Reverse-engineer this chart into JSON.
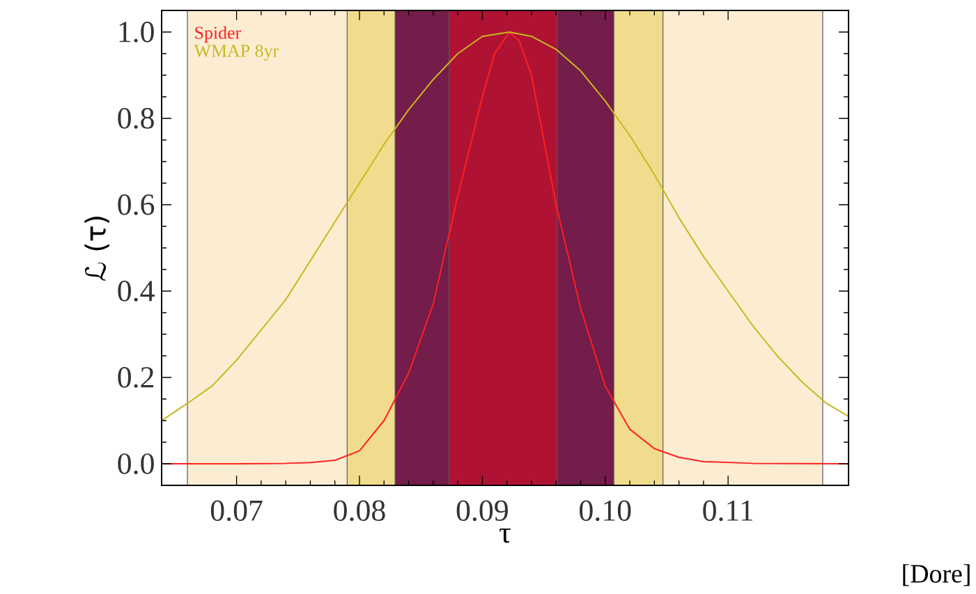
{
  "chart_data": {
    "type": "line",
    "xlabel": "τ",
    "ylabel": "ℒ (τ)",
    "xlim": [
      0.0639,
      0.1198
    ],
    "ylim": [
      -0.05,
      1.05
    ],
    "xticks": [
      0.07,
      0.08,
      0.09,
      {
        "value": 0.1,
        "label": "0.10"
      },
      0.11
    ],
    "yticks": [
      {
        "value": 0,
        "label": "0.0"
      },
      {
        "value": 0.2,
        "label": "0.2"
      },
      {
        "value": 0.4,
        "label": "0.4"
      },
      {
        "value": 0.6,
        "label": "0.6"
      },
      {
        "value": 0.8,
        "label": "0.8"
      },
      {
        "value": 1,
        "label": "1.0"
      }
    ],
    "bands": [
      {
        "axis": "x",
        "from": 0.066,
        "to": 0.1177,
        "color": "#fcedd2"
      },
      {
        "axis": "x",
        "from": 0.079,
        "to": 0.1047,
        "color": "#f0dc8c"
      },
      {
        "axis": "x",
        "from": 0.0829,
        "to": 0.1007,
        "color": "#741c4a"
      },
      {
        "axis": "x",
        "from": 0.0873,
        "to": 0.0961,
        "color": "#b01234"
      }
    ],
    "legend": "top left",
    "grid": false,
    "marker": "none",
    "line_style": "solid",
    "annotations": [
      "[Dore]"
    ],
    "series": [
      {
        "name": "Spider",
        "color": "#ff2020",
        "x": [
          0.0639,
          0.07,
          0.074,
          0.076,
          0.078,
          0.08,
          0.082,
          0.084,
          0.086,
          0.088,
          0.09,
          0.091,
          0.0922,
          0.093,
          0.094,
          0.096,
          0.098,
          0.1,
          0.102,
          0.104,
          0.106,
          0.108,
          0.112,
          0.1198
        ],
        "values": [
          0,
          0,
          0.001,
          0.003,
          0.008,
          0.03,
          0.1,
          0.21,
          0.37,
          0.62,
          0.85,
          0.95,
          1.0,
          0.98,
          0.9,
          0.6,
          0.36,
          0.18,
          0.08,
          0.035,
          0.015,
          0.005,
          0.001,
          0
        ]
      },
      {
        "name": "WMAP 8yr",
        "color": "#c8b820",
        "x": [
          0.0639,
          0.066,
          0.068,
          0.07,
          0.072,
          0.074,
          0.076,
          0.078,
          0.08,
          0.082,
          0.084,
          0.086,
          0.088,
          0.09,
          0.0922,
          0.094,
          0.096,
          0.098,
          0.1,
          0.102,
          0.104,
          0.106,
          0.108,
          0.11,
          0.112,
          0.114,
          0.116,
          0.118,
          0.1198
        ],
        "values": [
          0.1,
          0.14,
          0.18,
          0.24,
          0.31,
          0.38,
          0.47,
          0.56,
          0.65,
          0.74,
          0.82,
          0.89,
          0.95,
          0.99,
          1.0,
          0.99,
          0.96,
          0.91,
          0.84,
          0.76,
          0.67,
          0.57,
          0.48,
          0.4,
          0.32,
          0.25,
          0.19,
          0.14,
          0.11
        ]
      }
    ]
  }
}
